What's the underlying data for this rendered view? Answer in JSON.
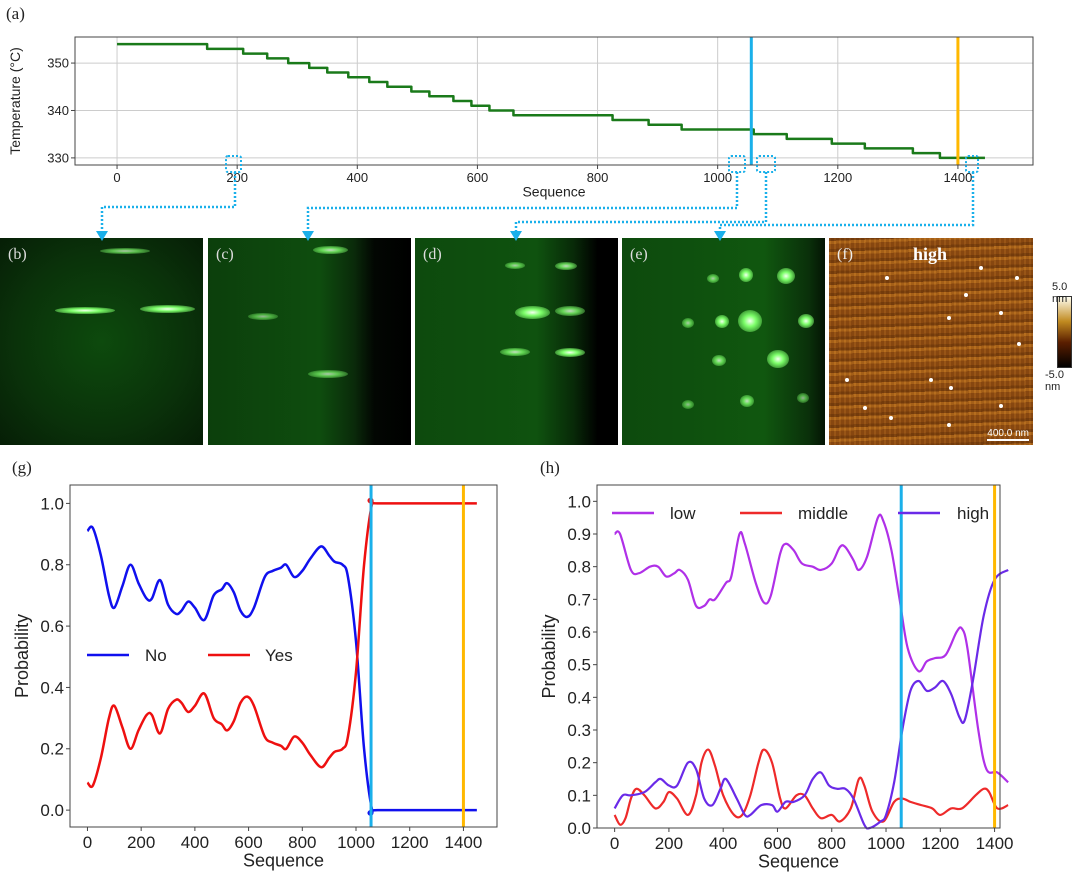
{
  "panel_labels": {
    "a": "(a)",
    "b": "(b)",
    "c": "(c)",
    "d": "(d)",
    "e": "(e)",
    "f": "(f)",
    "g": "(g)",
    "h": "(h)"
  },
  "afm": {
    "label": "high",
    "scalebar": "400.0 nm",
    "colorbar_max": "5.0 nm",
    "colorbar_min": "-5.0 nm"
  },
  "colors": {
    "marker_blue": "#1ab0ea",
    "marker_orange": "#ffb800",
    "connector": "#1ab0ea"
  },
  "chart_data": [
    {
      "id": "a",
      "type": "line",
      "xlabel": "Sequence",
      "ylabel": "Temperature (°C)",
      "xlim": [
        -70,
        1525
      ],
      "ylim": [
        328.5,
        355.5
      ],
      "grid": true,
      "xticks": [
        0,
        200,
        400,
        600,
        800,
        1000,
        1200,
        1400
      ],
      "yticks": [
        330,
        340,
        350
      ],
      "vlines": [
        {
          "x": 1056,
          "color": "#1ab0ea"
        },
        {
          "x": 1400,
          "color": "#ffb800"
        }
      ],
      "series": [
        {
          "color": "#1a7a1a",
          "step": true,
          "x": [
            0,
            150,
            210,
            250,
            285,
            320,
            350,
            385,
            420,
            450,
            490,
            520,
            560,
            590,
            620,
            660,
            825,
            885,
            940,
            1060,
            1115,
            1190,
            1245,
            1325,
            1370,
            1445
          ],
          "y": [
            354,
            353,
            352,
            351,
            350,
            349,
            348,
            347,
            346,
            345,
            344,
            343,
            342,
            341,
            340,
            339,
            338,
            337,
            336,
            335,
            334,
            333,
            332,
            331,
            330,
            330
          ]
        }
      ]
    },
    {
      "id": "g",
      "type": "line",
      "xlabel": "Sequence",
      "ylabel": "Probability",
      "xlim": [
        -65,
        1525
      ],
      "ylim": [
        -0.055,
        1.06
      ],
      "grid": false,
      "legend": "center-left",
      "xticks": [
        0,
        200,
        400,
        600,
        800,
        1000,
        1200,
        1400
      ],
      "yticks": [
        0.0,
        0.2,
        0.4,
        0.6,
        0.8,
        1.0
      ],
      "ytick_decimals": 1,
      "vlines": [
        {
          "x": 1056,
          "color": "#1ab0ea"
        },
        {
          "x": 1400,
          "color": "#ffb800"
        }
      ],
      "series": [
        {
          "name": "No",
          "color": "#1010ee",
          "x": [
            0,
            20,
            50,
            80,
            100,
            130,
            160,
            190,
            220,
            240,
            270,
            300,
            330,
            350,
            375,
            400,
            435,
            470,
            500,
            520,
            545,
            570,
            595,
            620,
            660,
            690,
            720,
            740,
            770,
            800,
            830,
            870,
            900,
            920,
            950,
            970,
            1000,
            1030,
            1060,
            1080,
            1450
          ],
          "y": [
            0.91,
            0.92,
            0.83,
            0.7,
            0.66,
            0.73,
            0.8,
            0.74,
            0.69,
            0.69,
            0.75,
            0.67,
            0.64,
            0.65,
            0.68,
            0.66,
            0.62,
            0.7,
            0.72,
            0.74,
            0.71,
            0.65,
            0.63,
            0.66,
            0.76,
            0.78,
            0.79,
            0.8,
            0.76,
            0.78,
            0.82,
            0.86,
            0.83,
            0.81,
            0.8,
            0.76,
            0.55,
            0.2,
            0.0,
            0.0,
            0.0
          ]
        },
        {
          "name": "Yes",
          "color": "#ee1010",
          "x": [
            0,
            20,
            50,
            80,
            100,
            130,
            160,
            190,
            220,
            240,
            270,
            300,
            330,
            350,
            375,
            400,
            435,
            470,
            500,
            520,
            545,
            570,
            595,
            620,
            660,
            690,
            720,
            740,
            770,
            800,
            830,
            870,
            900,
            920,
            950,
            970,
            1000,
            1030,
            1060,
            1080,
            1450
          ],
          "y": [
            0.09,
            0.08,
            0.17,
            0.3,
            0.34,
            0.27,
            0.2,
            0.26,
            0.31,
            0.31,
            0.25,
            0.33,
            0.36,
            0.35,
            0.32,
            0.34,
            0.38,
            0.3,
            0.28,
            0.26,
            0.29,
            0.35,
            0.37,
            0.34,
            0.24,
            0.22,
            0.21,
            0.2,
            0.24,
            0.22,
            0.18,
            0.14,
            0.17,
            0.19,
            0.2,
            0.24,
            0.45,
            0.8,
            1.0,
            1.0,
            1.0
          ]
        }
      ]
    },
    {
      "id": "h",
      "type": "line",
      "xlabel": "Sequence",
      "ylabel": "Probability",
      "xlim": [
        -65,
        1420
      ],
      "ylim": [
        0.0,
        1.05
      ],
      "grid": false,
      "legend": "top",
      "xticks": [
        0,
        200,
        400,
        600,
        800,
        1000,
        1200,
        1400
      ],
      "yticks": [
        0.0,
        0.1,
        0.2,
        0.3,
        0.4,
        0.5,
        0.6,
        0.7,
        0.8,
        0.9,
        1.0
      ],
      "ytick_decimals": 1,
      "vlines": [
        {
          "x": 1056,
          "color": "#1ab0ea"
        },
        {
          "x": 1400,
          "color": "#ffb800"
        }
      ],
      "series": [
        {
          "name": "low",
          "color": "#b030e8",
          "x": [
            0,
            20,
            60,
            90,
            130,
            160,
            190,
            220,
            240,
            270,
            300,
            330,
            350,
            370,
            410,
            430,
            460,
            480,
            520,
            550,
            575,
            610,
            630,
            660,
            690,
            730,
            760,
            800,
            830,
            850,
            880,
            900,
            930,
            970,
            990,
            1020,
            1050,
            1080,
            1120,
            1150,
            1180,
            1220,
            1260,
            1280,
            1300,
            1340,
            1370,
            1410,
            1450
          ],
          "y": [
            0.9,
            0.9,
            0.79,
            0.78,
            0.8,
            0.8,
            0.77,
            0.78,
            0.79,
            0.76,
            0.68,
            0.68,
            0.7,
            0.7,
            0.75,
            0.77,
            0.9,
            0.87,
            0.75,
            0.69,
            0.71,
            0.84,
            0.87,
            0.85,
            0.81,
            0.8,
            0.79,
            0.81,
            0.86,
            0.86,
            0.82,
            0.79,
            0.83,
            0.95,
            0.94,
            0.85,
            0.7,
            0.55,
            0.48,
            0.51,
            0.52,
            0.53,
            0.6,
            0.61,
            0.55,
            0.3,
            0.18,
            0.17,
            0.14
          ]
        },
        {
          "name": "middle",
          "color": "#ee2a2a",
          "x": [
            0,
            20,
            40,
            60,
            80,
            110,
            150,
            180,
            200,
            230,
            270,
            300,
            320,
            345,
            370,
            400,
            440,
            470,
            500,
            530,
            550,
            580,
            610,
            630,
            670,
            700,
            730,
            760,
            800,
            830,
            870,
            900,
            920,
            950,
            990,
            1030,
            1060,
            1090,
            1130,
            1170,
            1200,
            1240,
            1280,
            1330,
            1360,
            1380,
            1410,
            1450
          ],
          "y": [
            0.04,
            0.01,
            0.03,
            0.09,
            0.12,
            0.1,
            0.06,
            0.08,
            0.11,
            0.09,
            0.04,
            0.1,
            0.2,
            0.24,
            0.19,
            0.1,
            0.04,
            0.04,
            0.1,
            0.2,
            0.24,
            0.2,
            0.09,
            0.06,
            0.1,
            0.1,
            0.06,
            0.03,
            0.04,
            0.02,
            0.06,
            0.15,
            0.13,
            0.05,
            0.02,
            0.08,
            0.09,
            0.08,
            0.07,
            0.06,
            0.04,
            0.06,
            0.06,
            0.1,
            0.12,
            0.11,
            0.06,
            0.07
          ]
        },
        {
          "name": "high",
          "color": "#6a2ae8",
          "x": [
            0,
            30,
            60,
            110,
            150,
            170,
            200,
            230,
            270,
            300,
            330,
            360,
            390,
            410,
            450,
            480,
            500,
            540,
            580,
            600,
            630,
            660,
            700,
            730,
            760,
            790,
            820,
            850,
            880,
            920,
            940,
            980,
            1000,
            1030,
            1060,
            1090,
            1120,
            1150,
            1180,
            1210,
            1240,
            1270,
            1290,
            1320,
            1360,
            1400,
            1450
          ],
          "y": [
            0.06,
            0.1,
            0.1,
            0.11,
            0.14,
            0.15,
            0.13,
            0.13,
            0.2,
            0.18,
            0.09,
            0.07,
            0.12,
            0.15,
            0.09,
            0.04,
            0.04,
            0.07,
            0.07,
            0.05,
            0.08,
            0.08,
            0.1,
            0.15,
            0.17,
            0.13,
            0.12,
            0.12,
            0.09,
            0.01,
            0.0,
            0.02,
            0.04,
            0.14,
            0.3,
            0.42,
            0.45,
            0.42,
            0.43,
            0.45,
            0.41,
            0.34,
            0.33,
            0.45,
            0.65,
            0.76,
            0.79
          ]
        }
      ]
    }
  ]
}
